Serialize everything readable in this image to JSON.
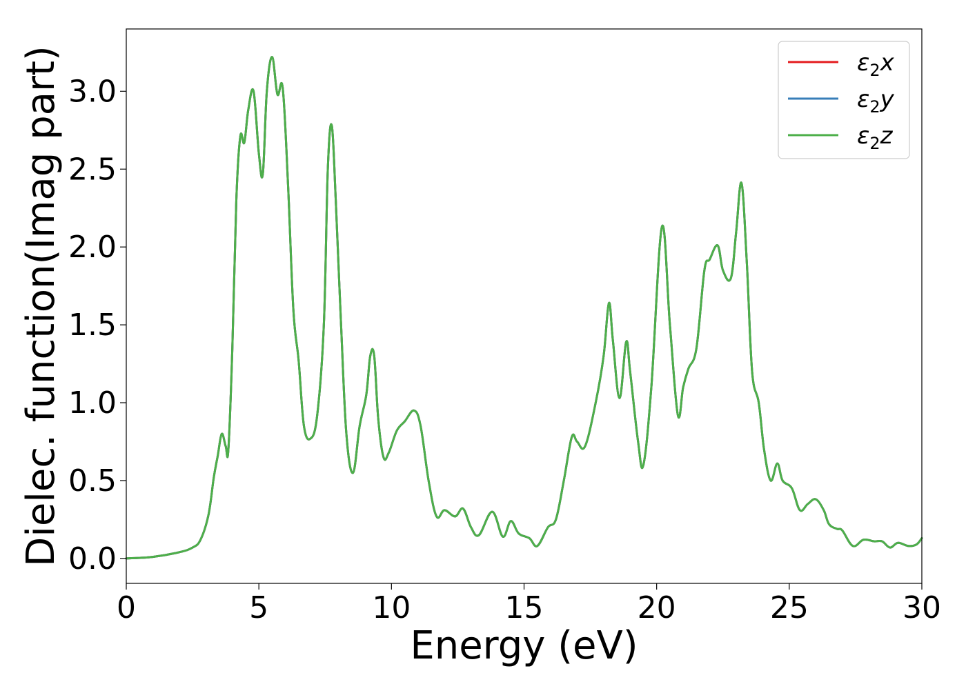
{
  "chart_data": {
    "type": "line",
    "xlabel": "Energy (eV)",
    "ylabel": "Dielec. function(Imag part)",
    "xlim": [
      0,
      30
    ],
    "ylim": [
      -0.16,
      3.4
    ],
    "xticks": [
      0,
      5,
      10,
      15,
      20,
      25,
      30
    ],
    "yticks": [
      0.0,
      0.5,
      1.0,
      1.5,
      2.0,
      2.5,
      3.0
    ],
    "xtick_labels": [
      "0",
      "5",
      "10",
      "15",
      "20",
      "25",
      "30"
    ],
    "ytick_labels": [
      "0.0",
      "0.5",
      "1.0",
      "1.5",
      "2.0",
      "2.5",
      "3.0"
    ],
    "grid": false,
    "legend_position": "top-right",
    "x": [
      0,
      1,
      2,
      2.5,
      2.8,
      3.1,
      3.3,
      3.45,
      3.6,
      3.75,
      3.85,
      4.0,
      4.15,
      4.3,
      4.45,
      4.6,
      4.8,
      5.0,
      5.15,
      5.3,
      5.5,
      5.7,
      5.9,
      6.1,
      6.3,
      6.5,
      6.7,
      6.95,
      7.2,
      7.45,
      7.6,
      7.75,
      7.9,
      8.1,
      8.3,
      8.55,
      8.8,
      9.05,
      9.2,
      9.35,
      9.5,
      9.7,
      9.9,
      10.2,
      10.5,
      10.85,
      11.1,
      11.4,
      11.7,
      12.0,
      12.4,
      12.7,
      13.0,
      13.3,
      13.8,
      14.2,
      14.5,
      14.8,
      15.2,
      15.5,
      15.9,
      16.2,
      16.5,
      16.8,
      17.0,
      17.3,
      17.7,
      18.0,
      18.2,
      18.35,
      18.6,
      18.85,
      19.0,
      19.3,
      19.5,
      19.8,
      20.2,
      20.5,
      20.8,
      21.0,
      21.2,
      21.5,
      21.8,
      22.0,
      22.3,
      22.5,
      22.8,
      23.0,
      23.2,
      23.4,
      23.6,
      23.85,
      24.05,
      24.3,
      24.55,
      24.75,
      25.1,
      25.4,
      25.7,
      26.0,
      26.3,
      26.5,
      26.8,
      27.0,
      27.4,
      27.8,
      28.2,
      28.5,
      28.8,
      29.1,
      29.5,
      29.8,
      30.0
    ],
    "series": [
      {
        "name": "ε2x",
        "color": "#e41a1c",
        "values": [
          0.0,
          0.01,
          0.04,
          0.07,
          0.12,
          0.28,
          0.52,
          0.66,
          0.8,
          0.72,
          0.7,
          1.35,
          2.3,
          2.71,
          2.67,
          2.88,
          3.0,
          2.6,
          2.47,
          3.0,
          3.22,
          2.98,
          3.02,
          2.4,
          1.6,
          1.27,
          0.85,
          0.77,
          0.92,
          1.5,
          2.5,
          2.78,
          2.3,
          1.5,
          0.8,
          0.55,
          0.85,
          1.05,
          1.3,
          1.3,
          0.9,
          0.65,
          0.68,
          0.82,
          0.88,
          0.95,
          0.85,
          0.5,
          0.27,
          0.31,
          0.27,
          0.32,
          0.2,
          0.15,
          0.3,
          0.14,
          0.24,
          0.16,
          0.13,
          0.08,
          0.2,
          0.25,
          0.5,
          0.78,
          0.75,
          0.72,
          1.0,
          1.3,
          1.64,
          1.4,
          1.03,
          1.39,
          1.2,
          0.75,
          0.6,
          1.1,
          2.13,
          1.5,
          0.92,
          1.1,
          1.22,
          1.35,
          1.85,
          1.92,
          2.01,
          1.85,
          1.8,
          2.1,
          2.41,
          1.9,
          1.2,
          1.0,
          0.7,
          0.5,
          0.61,
          0.5,
          0.45,
          0.31,
          0.35,
          0.38,
          0.31,
          0.22,
          0.19,
          0.18,
          0.08,
          0.12,
          0.11,
          0.11,
          0.07,
          0.1,
          0.08,
          0.09,
          0.13
        ]
      },
      {
        "name": "ε2y",
        "color": "#377eb8",
        "values": [
          0.0,
          0.01,
          0.04,
          0.07,
          0.12,
          0.28,
          0.52,
          0.66,
          0.8,
          0.72,
          0.7,
          1.35,
          2.3,
          2.71,
          2.67,
          2.88,
          3.0,
          2.6,
          2.47,
          3.0,
          3.22,
          2.98,
          3.02,
          2.4,
          1.6,
          1.27,
          0.85,
          0.77,
          0.92,
          1.5,
          2.5,
          2.78,
          2.3,
          1.5,
          0.8,
          0.55,
          0.85,
          1.05,
          1.3,
          1.3,
          0.9,
          0.65,
          0.68,
          0.82,
          0.88,
          0.95,
          0.85,
          0.5,
          0.27,
          0.31,
          0.27,
          0.32,
          0.2,
          0.15,
          0.3,
          0.14,
          0.24,
          0.16,
          0.13,
          0.08,
          0.2,
          0.25,
          0.5,
          0.78,
          0.75,
          0.72,
          1.0,
          1.3,
          1.64,
          1.4,
          1.03,
          1.39,
          1.2,
          0.75,
          0.6,
          1.1,
          2.13,
          1.5,
          0.92,
          1.1,
          1.22,
          1.35,
          1.85,
          1.92,
          2.01,
          1.85,
          1.8,
          2.1,
          2.41,
          1.9,
          1.2,
          1.0,
          0.7,
          0.5,
          0.61,
          0.5,
          0.45,
          0.31,
          0.35,
          0.38,
          0.31,
          0.22,
          0.19,
          0.18,
          0.08,
          0.12,
          0.11,
          0.11,
          0.07,
          0.1,
          0.08,
          0.09,
          0.13
        ]
      },
      {
        "name": "ε2z",
        "color": "#4daf4a",
        "values": [
          0.0,
          0.01,
          0.04,
          0.07,
          0.12,
          0.28,
          0.52,
          0.66,
          0.8,
          0.72,
          0.7,
          1.35,
          2.3,
          2.71,
          2.67,
          2.88,
          3.0,
          2.6,
          2.47,
          3.0,
          3.22,
          2.98,
          3.02,
          2.4,
          1.6,
          1.27,
          0.85,
          0.77,
          0.92,
          1.5,
          2.5,
          2.78,
          2.3,
          1.5,
          0.8,
          0.55,
          0.85,
          1.05,
          1.3,
          1.3,
          0.9,
          0.65,
          0.68,
          0.82,
          0.88,
          0.95,
          0.85,
          0.5,
          0.27,
          0.31,
          0.27,
          0.32,
          0.2,
          0.15,
          0.3,
          0.14,
          0.24,
          0.16,
          0.13,
          0.08,
          0.2,
          0.25,
          0.5,
          0.78,
          0.75,
          0.72,
          1.0,
          1.3,
          1.64,
          1.4,
          1.03,
          1.39,
          1.2,
          0.75,
          0.6,
          1.1,
          2.13,
          1.5,
          0.92,
          1.1,
          1.22,
          1.35,
          1.85,
          1.92,
          2.01,
          1.85,
          1.8,
          2.1,
          2.41,
          1.9,
          1.2,
          1.0,
          0.7,
          0.5,
          0.61,
          0.5,
          0.45,
          0.31,
          0.35,
          0.38,
          0.31,
          0.22,
          0.19,
          0.18,
          0.08,
          0.12,
          0.11,
          0.11,
          0.07,
          0.1,
          0.08,
          0.09,
          0.13
        ]
      }
    ],
    "legend": {
      "entries": [
        {
          "symbol": "ε",
          "sub": "2",
          "axis": "x"
        },
        {
          "symbol": "ε",
          "sub": "2",
          "axis": "y"
        },
        {
          "symbol": "ε",
          "sub": "2",
          "axis": "z"
        }
      ]
    }
  }
}
